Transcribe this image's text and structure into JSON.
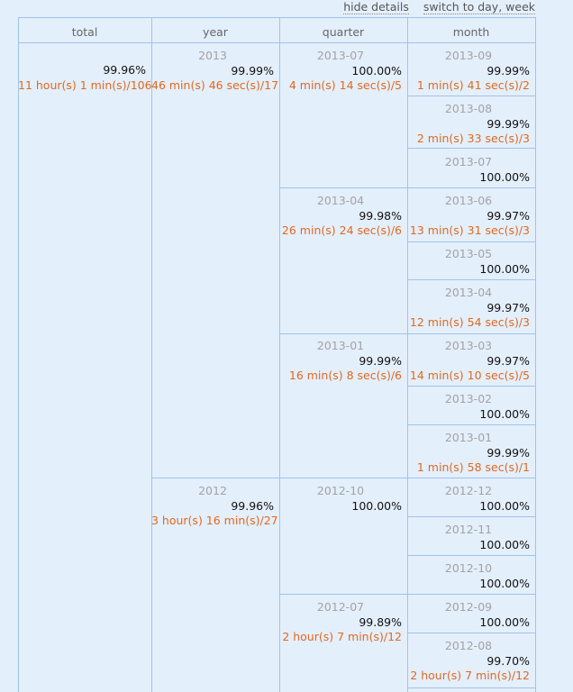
{
  "links": {
    "hide_details": "hide details",
    "switch_view": "switch to day, week"
  },
  "headers": {
    "total": "total",
    "year": "year",
    "quarter": "quarter",
    "month": "month"
  },
  "total": {
    "pct": "99.96%",
    "downtime": "11 hour(s) 1 min(s)/106"
  },
  "years": [
    {
      "label": "2013",
      "pct": "99.99%",
      "downtime": "46 min(s) 46 sec(s)/17"
    },
    {
      "label": "2012",
      "pct": "99.96%",
      "downtime": "3 hour(s) 16 min(s)/27"
    }
  ],
  "quarters": [
    {
      "label": "2013-07",
      "pct": "100.00%",
      "downtime": "4 min(s) 14 sec(s)/5"
    },
    {
      "label": "2013-04",
      "pct": "99.98%",
      "downtime": "26 min(s) 24 sec(s)/6"
    },
    {
      "label": "2013-01",
      "pct": "99.99%",
      "downtime": "16 min(s) 8 sec(s)/6"
    },
    {
      "label": "2012-10",
      "pct": "100.00%",
      "downtime": ""
    },
    {
      "label": "2012-07",
      "pct": "99.89%",
      "downtime": "2 hour(s) 7 min(s)/12"
    }
  ],
  "months": [
    {
      "label": "2013-09",
      "pct": "99.99%",
      "downtime": "1 min(s) 41 sec(s)/2"
    },
    {
      "label": "2013-08",
      "pct": "99.99%",
      "downtime": "2 min(s) 33 sec(s)/3"
    },
    {
      "label": "2013-07",
      "pct": "100.00%",
      "downtime": ""
    },
    {
      "label": "2013-06",
      "pct": "99.97%",
      "downtime": "13 min(s) 31 sec(s)/3"
    },
    {
      "label": "2013-05",
      "pct": "100.00%",
      "downtime": ""
    },
    {
      "label": "2013-04",
      "pct": "99.97%",
      "downtime": "12 min(s) 54 sec(s)/3"
    },
    {
      "label": "2013-03",
      "pct": "99.97%",
      "downtime": "14 min(s) 10 sec(s)/5"
    },
    {
      "label": "2013-02",
      "pct": "100.00%",
      "downtime": ""
    },
    {
      "label": "2013-01",
      "pct": "99.99%",
      "downtime": "1 min(s) 58 sec(s)/1"
    },
    {
      "label": "2012-12",
      "pct": "100.00%",
      "downtime": ""
    },
    {
      "label": "2012-11",
      "pct": "100.00%",
      "downtime": ""
    },
    {
      "label": "2012-10",
      "pct": "100.00%",
      "downtime": ""
    },
    {
      "label": "2012-09",
      "pct": "100.00%",
      "downtime": ""
    },
    {
      "label": "2012-08",
      "pct": "99.70%",
      "downtime": "2 hour(s) 7 min(s)/12"
    }
  ]
}
